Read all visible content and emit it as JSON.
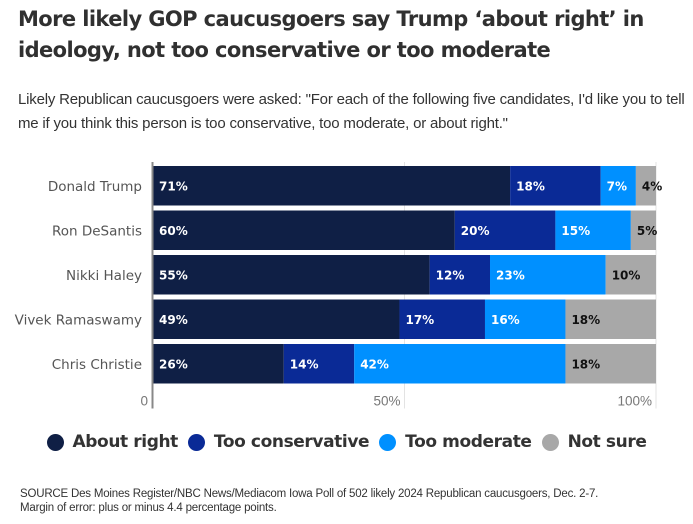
{
  "title": "More likely GOP caucusgoers say Trump ‘about right’ in ideology, not too conservative or too moderate",
  "subtitle": "Likely Republican caucusgoers were asked: \"For each of the following five candidates, I'd like you to tell me if you think this person is too conservative, too moderate, or about right.\"",
  "source": "SOURCE Des Moines Register/NBC News/Mediacom Iowa Poll of 502 likely 2024 Republican caucusgoers, Dec. 2-7.",
  "margin_note": "Margin of error: plus or minus 4.4 percentage points.",
  "legend": [
    {
      "label": "About right",
      "color": "#0f1f45"
    },
    {
      "label": "Too conservative",
      "color": "#0a2a96"
    },
    {
      "label": "Too moderate",
      "color": "#0090ff"
    },
    {
      "label": "Not sure",
      "color": "#a8a8a8"
    }
  ],
  "chart_data": {
    "type": "bar",
    "orientation": "horizontal",
    "stacked": true,
    "title": "More likely GOP caucusgoers say Trump ‘about right’ in ideology, not too conservative or too moderate",
    "categories": [
      "Donald Trump",
      "Ron DeSantis",
      "Nikki Haley",
      "Vivek Ramaswamy",
      "Chris Christie"
    ],
    "series": [
      {
        "name": "About right",
        "color": "#0f1f45",
        "label_color": "#ffffff",
        "values": [
          71,
          60,
          55,
          49,
          26
        ]
      },
      {
        "name": "Too conservative",
        "color": "#0a2a96",
        "label_color": "#ffffff",
        "values": [
          18,
          20,
          12,
          17,
          14
        ]
      },
      {
        "name": "Too moderate",
        "color": "#0090ff",
        "label_color": "#ffffff",
        "values": [
          7,
          15,
          23,
          16,
          42
        ]
      },
      {
        "name": "Not sure",
        "color": "#a8a8a8",
        "label_color": "#111111",
        "values": [
          4,
          5,
          10,
          18,
          18
        ]
      }
    ],
    "x_ticks": [
      "0",
      "50%",
      "100%"
    ],
    "xlim": [
      0,
      100
    ],
    "xlabel": "",
    "ylabel": "",
    "grid": true,
    "legend_position": "bottom"
  }
}
